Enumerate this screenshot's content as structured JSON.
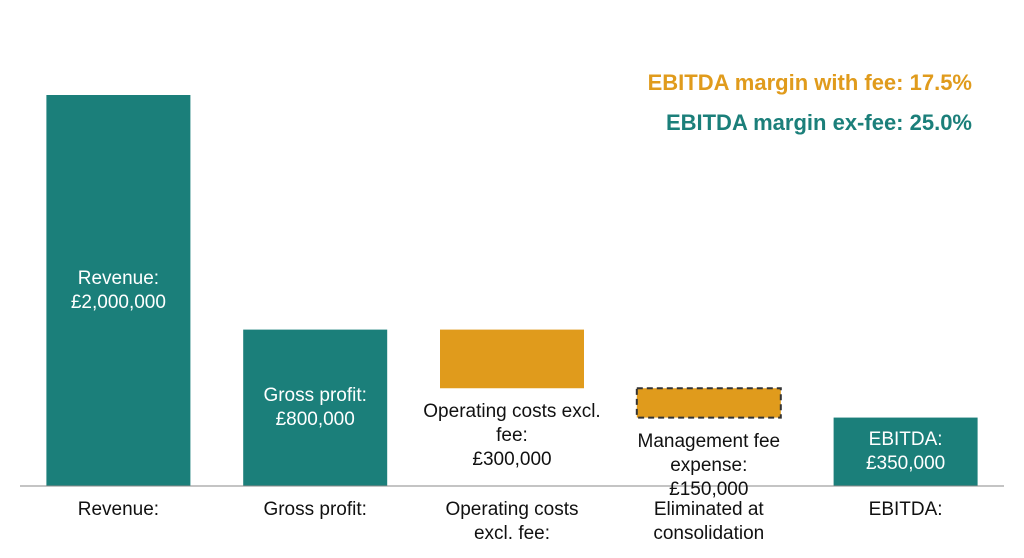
{
  "chart_data": {
    "type": "waterfall",
    "categories": [
      "Revenue:",
      "Gross profit:",
      "Operating costs excl. fee:",
      "Eliminated at consolidation",
      "EBITDA:"
    ],
    "bar_names": [
      "Revenue:",
      "Gross profit:",
      "Operating costs excl. fee:",
      "Management fee expense:",
      "EBITDA:"
    ],
    "values": [
      2000000,
      800000,
      300000,
      150000,
      350000
    ],
    "value_labels": [
      "£2,000,000",
      "£800,000",
      "£300,000",
      "£150,000",
      "£350,000"
    ],
    "measures": [
      "total",
      "total",
      "decrease",
      "decrease",
      "total"
    ],
    "colors": [
      "#1b7f7a",
      "#1b7f7a",
      "#e09b1c",
      "#e09b1c",
      "#1b7f7a"
    ],
    "dashed": [
      false,
      false,
      false,
      true,
      false
    ],
    "ylim": [
      0,
      2000000
    ],
    "annotations": [
      {
        "text": "EBITDA margin with fee: 17.5%",
        "color": "#e09b1c"
      },
      {
        "text": "EBITDA margin ex-fee: 25.0%",
        "color": "#1b7f7a"
      }
    ]
  }
}
